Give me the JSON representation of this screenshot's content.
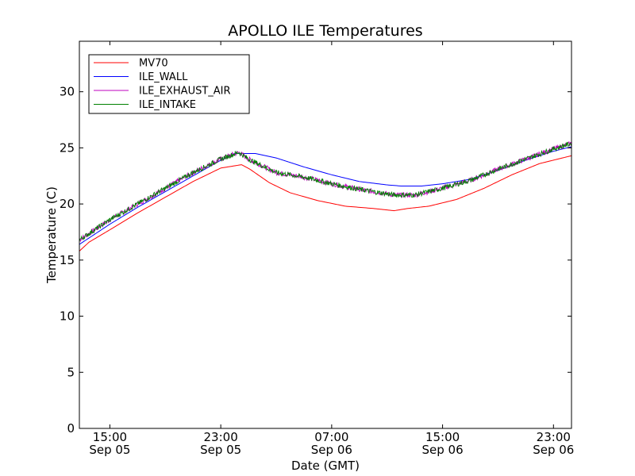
{
  "chart_data": {
    "type": "line",
    "title": "APOLLO ILE Temperatures",
    "xlabel": "Date (GMT)",
    "ylabel": "Temperature (C)",
    "x_unit": "hours since Sep 05 00:00 GMT",
    "xlim": [
      12.8,
      48.3
    ],
    "ylim": [
      0,
      34.5
    ],
    "yticks": [
      0,
      5,
      10,
      15,
      20,
      25,
      30
    ],
    "xticks": [
      {
        "x": 15,
        "line1": "15:00",
        "line2": "Sep 05"
      },
      {
        "x": 23,
        "line1": "23:00",
        "line2": "Sep 05"
      },
      {
        "x": 31,
        "line1": "07:00",
        "line2": "Sep 06"
      },
      {
        "x": 39,
        "line1": "15:00",
        "line2": "Sep 06"
      },
      {
        "x": 47,
        "line1": "23:00",
        "line2": "Sep 06"
      }
    ],
    "grid": false,
    "legend_position": "top-left",
    "series": [
      {
        "name": "MV70",
        "color": "#ff0000",
        "x": [
          12.8,
          13.5,
          15.0,
          17.0,
          19.0,
          21.0,
          23.0,
          24.5,
          25.1,
          26.5,
          28.0,
          30.0,
          32.0,
          34.0,
          35.5,
          36.5,
          38.0,
          40.0,
          42.0,
          44.0,
          46.0,
          48.3
        ],
        "values": [
          15.8,
          16.6,
          17.7,
          19.2,
          20.6,
          22.0,
          23.2,
          23.5,
          23.1,
          21.9,
          21.0,
          20.3,
          19.8,
          19.6,
          19.4,
          19.6,
          19.8,
          20.4,
          21.4,
          22.6,
          23.6,
          24.3
        ]
      },
      {
        "name": "ILE_WALL",
        "color": "#0000ff",
        "x": [
          12.8,
          15.0,
          17.0,
          19.0,
          21.0,
          23.0,
          24.0,
          25.5,
          27.0,
          29.0,
          31.0,
          33.0,
          35.0,
          36.0,
          37.5,
          39.0,
          41.0,
          43.0,
          45.0,
          47.0,
          48.3
        ],
        "values": [
          16.4,
          18.2,
          19.7,
          21.1,
          22.5,
          23.9,
          24.5,
          24.5,
          24.1,
          23.3,
          22.6,
          22.0,
          21.7,
          21.6,
          21.6,
          21.8,
          22.2,
          23.0,
          23.9,
          24.7,
          25.1
        ]
      },
      {
        "name": "ILE_EXHAUST_AIR",
        "color": "#bf00bf",
        "x": [
          12.8,
          15.0,
          17.0,
          19.0,
          21.0,
          23.0,
          24.3,
          25.0,
          27.0,
          29.0,
          31.0,
          33.0,
          35.5,
          37.0,
          39.0,
          41.0,
          43.0,
          45.0,
          47.0,
          48.3
        ],
        "values": [
          16.8,
          18.6,
          20.0,
          21.4,
          22.8,
          24.0,
          24.6,
          24.0,
          22.8,
          22.4,
          21.8,
          21.3,
          20.8,
          20.8,
          21.4,
          22.1,
          23.1,
          24.0,
          24.9,
          25.4
        ]
      },
      {
        "name": "ILE_INTAKE",
        "color": "#008000",
        "x": [
          12.8,
          15.0,
          17.0,
          19.0,
          21.0,
          23.0,
          24.3,
          25.0,
          27.0,
          29.0,
          31.0,
          33.0,
          35.5,
          37.0,
          39.0,
          41.0,
          43.0,
          45.0,
          47.0,
          48.3
        ],
        "values": [
          16.8,
          18.6,
          20.0,
          21.4,
          22.8,
          24.0,
          24.6,
          24.0,
          22.8,
          22.4,
          21.8,
          21.3,
          20.8,
          20.8,
          21.4,
          22.1,
          23.1,
          24.0,
          24.9,
          25.4
        ]
      }
    ]
  }
}
